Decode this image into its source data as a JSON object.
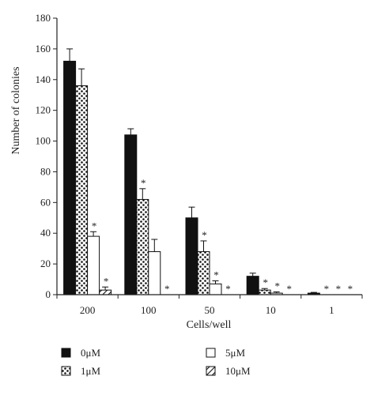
{
  "chart_data": {
    "type": "bar",
    "xlabel": "Cells/well",
    "ylabel": "Number of colonies",
    "ylim": [
      0,
      180
    ],
    "yticks": [
      0,
      20,
      40,
      60,
      80,
      100,
      120,
      140,
      160,
      180
    ],
    "categories": [
      "200",
      "100",
      "50",
      "10",
      "1"
    ],
    "significance_mark": "*",
    "legend_position": "bottom",
    "series": [
      {
        "name": "0μM",
        "pattern": "solid-black",
        "values": [
          152,
          104,
          50,
          12,
          1
        ],
        "errors": [
          8,
          4,
          7,
          2,
          0.5
        ],
        "significant": [
          false,
          false,
          false,
          false,
          false
        ]
      },
      {
        "name": "1μM",
        "pattern": "dots",
        "values": [
          136,
          62,
          28,
          3,
          0
        ],
        "errors": [
          11,
          7,
          7,
          1,
          0
        ],
        "significant": [
          false,
          true,
          true,
          true,
          true
        ]
      },
      {
        "name": "5μM",
        "pattern": "white",
        "values": [
          38,
          28,
          7,
          1,
          0
        ],
        "errors": [
          3,
          8,
          2,
          0.8,
          0
        ],
        "significant": [
          true,
          false,
          true,
          true,
          true
        ]
      },
      {
        "name": "10μM",
        "pattern": "hatch",
        "values": [
          3,
          0,
          0,
          0,
          0
        ],
        "errors": [
          2,
          0,
          0,
          0,
          0
        ],
        "significant": [
          true,
          true,
          true,
          true,
          true
        ]
      }
    ]
  }
}
